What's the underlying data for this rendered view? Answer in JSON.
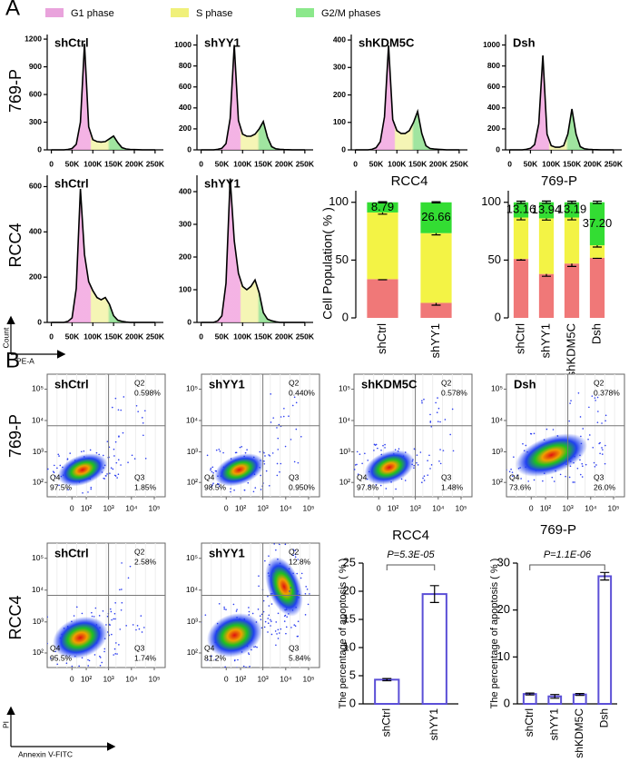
{
  "labels": {
    "panel_a": "A",
    "panel_b": "B",
    "row_a1": "769-P",
    "row_a2": "RCC4",
    "row_b1": "769-P",
    "row_b2": "RCC4",
    "count": "Count",
    "pe_a": "PE-A",
    "pi": "PI",
    "annexin": "Annexin V-FITC"
  },
  "legend": [
    {
      "name": "G1 phase",
      "color": "#e9a3dc"
    },
    {
      "name": "S phase",
      "color": "#f0f07a"
    },
    {
      "name": "G2/M phases",
      "color": "#8be88b"
    }
  ],
  "chart_data": [
    {
      "type": "line",
      "title": "shCtrl",
      "x": [
        0,
        10000,
        20000,
        30000,
        40000,
        50000,
        60000,
        70000,
        80000,
        90000,
        100000,
        110000,
        120000,
        130000,
        140000,
        150000,
        160000,
        170000,
        180000,
        190000,
        200000,
        210000,
        220000,
        230000,
        240000,
        250000
      ],
      "values": [
        0,
        0,
        0,
        0,
        5,
        15,
        60,
        300,
        1150,
        250,
        110,
        90,
        85,
        90,
        120,
        150,
        80,
        25,
        10,
        5,
        3,
        2,
        0,
        0,
        0,
        0
      ],
      "xlim": [
        -10000,
        270000
      ],
      "ylim": [
        0,
        1250
      ],
      "yticks": [
        0,
        300,
        600,
        900,
        1200
      ],
      "xticks": [
        0,
        {
          "value": 50000,
          "label": "50K"
        },
        {
          "value": 100000,
          "label": "100K"
        },
        {
          "value": 150000,
          "label": "150K"
        },
        {
          "value": 200000,
          "label": "200K"
        },
        {
          "value": 250000,
          "label": "250K"
        }
      ]
    },
    {
      "type": "line",
      "title": "shYY1",
      "x": [
        0,
        10000,
        20000,
        30000,
        40000,
        50000,
        60000,
        70000,
        80000,
        90000,
        100000,
        110000,
        120000,
        130000,
        140000,
        150000,
        160000,
        170000,
        180000,
        190000,
        200000,
        210000,
        220000,
        230000,
        240000,
        250000
      ],
      "values": [
        0,
        0,
        0,
        0,
        5,
        15,
        60,
        300,
        1000,
        280,
        150,
        130,
        130,
        150,
        200,
        270,
        120,
        30,
        10,
        5,
        3,
        2,
        0,
        0,
        0,
        0
      ],
      "xlim": [
        -10000,
        270000
      ],
      "ylim": [
        0,
        1100
      ],
      "yticks": [
        0,
        200,
        400,
        600,
        800,
        1000
      ],
      "xticks": [
        0,
        {
          "value": 50000,
          "label": "50K"
        },
        {
          "value": 100000,
          "label": "100K"
        },
        {
          "value": 150000,
          "label": "150K"
        },
        {
          "value": 200000,
          "label": "200K"
        },
        {
          "value": 250000,
          "label": "250K"
        }
      ]
    },
    {
      "type": "line",
      "title": "shKDM5C",
      "x": [
        0,
        10000,
        20000,
        30000,
        40000,
        50000,
        60000,
        70000,
        80000,
        90000,
        100000,
        110000,
        120000,
        130000,
        140000,
        150000,
        160000,
        170000,
        180000,
        190000,
        200000,
        210000,
        220000,
        230000,
        240000,
        250000
      ],
      "values": [
        0,
        0,
        0,
        0,
        2,
        8,
        30,
        120,
        380,
        110,
        70,
        60,
        60,
        70,
        100,
        140,
        60,
        15,
        5,
        3,
        2,
        1,
        0,
        0,
        0,
        0
      ],
      "xlim": [
        -10000,
        270000
      ],
      "ylim": [
        0,
        420
      ],
      "yticks": [
        0,
        100,
        200,
        300,
        400
      ],
      "xticks": [
        0,
        {
          "value": 50000,
          "label": "50K"
        },
        {
          "value": 100000,
          "label": "100K"
        },
        {
          "value": 150000,
          "label": "150K"
        },
        {
          "value": 200000,
          "label": "200K"
        },
        {
          "value": 250000,
          "label": "250K"
        }
      ]
    },
    {
      "type": "line",
      "title": "Dsh",
      "x": [
        0,
        10000,
        20000,
        30000,
        40000,
        50000,
        60000,
        70000,
        80000,
        90000,
        100000,
        110000,
        120000,
        130000,
        140000,
        150000,
        160000,
        170000,
        180000,
        190000,
        200000,
        210000,
        220000,
        230000,
        240000,
        250000
      ],
      "values": [
        0,
        0,
        0,
        0,
        5,
        15,
        50,
        250,
        900,
        150,
        40,
        25,
        25,
        40,
        150,
        390,
        150,
        30,
        10,
        5,
        3,
        2,
        0,
        0,
        0,
        0
      ],
      "xlim": [
        -10000,
        270000
      ],
      "ylim": [
        0,
        1100
      ],
      "yticks": [
        0,
        200,
        400,
        600,
        800,
        1000
      ],
      "xticks": [
        0,
        {
          "value": 50000,
          "label": "50K"
        },
        {
          "value": 100000,
          "label": "100K"
        },
        {
          "value": 150000,
          "label": "150K"
        },
        {
          "value": 200000,
          "label": "200K"
        },
        {
          "value": 250000,
          "label": "250K"
        }
      ]
    },
    {
      "type": "line",
      "title": "shCtrl",
      "x": [
        0,
        10000,
        20000,
        30000,
        40000,
        50000,
        60000,
        70000,
        80000,
        90000,
        100000,
        110000,
        120000,
        130000,
        140000,
        150000,
        160000,
        170000,
        180000,
        190000,
        200000,
        210000,
        220000,
        230000,
        240000,
        250000
      ],
      "values": [
        0,
        0,
        0,
        0,
        5,
        20,
        150,
        590,
        300,
        180,
        140,
        110,
        100,
        110,
        80,
        30,
        10,
        5,
        2,
        0,
        0,
        0,
        0,
        0,
        0,
        0
      ],
      "xlim": [
        -10000,
        270000
      ],
      "ylim": [
        0,
        650
      ],
      "yticks": [
        0,
        200,
        400,
        600
      ],
      "xticks": [
        0,
        {
          "value": 50000,
          "label": "50K"
        },
        {
          "value": 100000,
          "label": "100K"
        },
        {
          "value": 150000,
          "label": "150K"
        },
        {
          "value": 200000,
          "label": "200K"
        },
        {
          "value": 250000,
          "label": "250K"
        }
      ]
    },
    {
      "type": "line",
      "title": "shYY1",
      "x": [
        0,
        10000,
        20000,
        30000,
        40000,
        50000,
        60000,
        70000,
        80000,
        90000,
        100000,
        110000,
        120000,
        130000,
        140000,
        150000,
        160000,
        170000,
        180000,
        190000,
        200000,
        210000,
        220000,
        230000,
        240000,
        250000
      ],
      "values": [
        0,
        0,
        0,
        0,
        5,
        20,
        120,
        440,
        250,
        150,
        110,
        100,
        110,
        130,
        90,
        30,
        10,
        5,
        2,
        0,
        0,
        0,
        0,
        0,
        0,
        0
      ],
      "xlim": [
        -10000,
        270000
      ],
      "ylim": [
        0,
        450
      ],
      "yticks": [
        0,
        100,
        200,
        300,
        400
      ],
      "xticks": [
        0,
        {
          "value": 50000,
          "label": "50K"
        },
        {
          "value": 100000,
          "label": "100K"
        },
        {
          "value": 150000,
          "label": "150K"
        },
        {
          "value": 200000,
          "label": "200K"
        },
        {
          "value": 250000,
          "label": "250K"
        }
      ]
    },
    {
      "type": "stacked_bar",
      "title": "RCC4",
      "y_label": "Cell Population( % )",
      "categories": [
        "shCtrl",
        "shYY1"
      ],
      "series": [
        {
          "color": "#f07878",
          "values": [
            33.5,
            13
          ],
          "errors": [
            0.5,
            2
          ]
        },
        {
          "color": "#f3f345",
          "values": [
            57.7,
            60.3
          ],
          "errors": [
            1.5,
            1.5
          ]
        },
        {
          "color": "#33dd33",
          "values": [
            8.79,
            26.66
          ],
          "errors": [
            0.5,
            0.5
          ],
          "value_labels": [
            "8.79",
            "26.66"
          ]
        }
      ],
      "ylim": [
        0,
        110
      ],
      "yticks": [
        0,
        50,
        100
      ]
    },
    {
      "type": "stacked_bar",
      "title": "769-P",
      "categories": [
        "shCtrl",
        "shYY1",
        "shKDM5C",
        "Dsh"
      ],
      "series": [
        {
          "color": "#f07878",
          "values": [
            51,
            38,
            47,
            52
          ],
          "errors": [
            1,
            2,
            2.5,
            0.5
          ]
        },
        {
          "color": "#f3f345",
          "values": [
            35.8,
            48.1,
            39.8,
            10.8
          ],
          "errors": [
            2,
            1.5,
            2,
            1.5
          ]
        },
        {
          "color": "#33dd33",
          "values": [
            13.16,
            13.94,
            13.19,
            37.2
          ],
          "errors": [
            1,
            1,
            1,
            1
          ],
          "value_labels": [
            "13.16",
            "13.94",
            "13.19",
            "37.20"
          ]
        }
      ],
      "ylim": [
        0,
        110
      ],
      "yticks": [
        0,
        50,
        100
      ]
    },
    {
      "type": "flow",
      "title": "shCtrl",
      "scale": "biexponential",
      "quadrants": [
        "Q2",
        "Q3",
        "Q4"
      ],
      "quadrant_values": [
        "0.598%",
        "1.85%",
        "97.5%"
      ],
      "xlim": [
        -300,
        300000
      ],
      "ylim": [
        20,
        300000
      ],
      "xticks": [
        0,
        {
          "value": 100,
          "label": "10²"
        },
        {
          "value": 1000,
          "label": "10³"
        },
        {
          "value": 10000,
          "label": "10⁴"
        },
        {
          "value": 100000,
          "label": "10⁵"
        }
      ],
      "yticks": [
        {
          "value": 100,
          "label": "10²"
        },
        {
          "value": 1000,
          "label": "10³"
        },
        {
          "value": 10000,
          "label": "10⁴"
        },
        {
          "value": 100000,
          "label": "10⁵"
        }
      ]
    },
    {
      "type": "flow",
      "title": "shYY1",
      "scale": "biexponential",
      "quadrants": [
        "Q2",
        "Q3",
        "Q4"
      ],
      "quadrant_values": [
        "0.440%",
        "0.950%",
        "98.5%"
      ],
      "xlim": [
        -300,
        300000
      ],
      "ylim": [
        20,
        300000
      ],
      "xticks": [
        0,
        {
          "value": 100,
          "label": "10²"
        },
        {
          "value": 1000,
          "label": "10³"
        },
        {
          "value": 10000,
          "label": "10⁴"
        },
        {
          "value": 100000,
          "label": "10⁵"
        }
      ],
      "yticks": [
        {
          "value": 100,
          "label": "10²"
        },
        {
          "value": 1000,
          "label": "10³"
        },
        {
          "value": 10000,
          "label": "10⁴"
        },
        {
          "value": 100000,
          "label": "10⁵"
        }
      ]
    },
    {
      "type": "flow",
      "title": "shKDM5C",
      "scale": "biexponential",
      "quadrants": [
        "Q2",
        "Q3",
        "Q4"
      ],
      "quadrant_values": [
        "0.578%",
        "1.48%",
        "97.8%"
      ],
      "xlim": [
        -300,
        300000
      ],
      "ylim": [
        20,
        300000
      ],
      "xticks": [
        0,
        {
          "value": 100,
          "label": "10²"
        },
        {
          "value": 1000,
          "label": "10³"
        },
        {
          "value": 10000,
          "label": "10⁴"
        },
        {
          "value": 100000,
          "label": "10⁵"
        }
      ],
      "yticks": [
        {
          "value": 100,
          "label": "10²"
        },
        {
          "value": 1000,
          "label": "10³"
        },
        {
          "value": 10000,
          "label": "10⁴"
        },
        {
          "value": 100000,
          "label": "10⁵"
        }
      ]
    },
    {
      "type": "flow",
      "title": "Dsh",
      "scale": "biexponential",
      "quadrants": [
        "Q2",
        "Q3",
        "Q4"
      ],
      "quadrant_values": [
        "0.378%",
        "26.0%",
        "73.6%"
      ],
      "xlim": [
        -300,
        300000
      ],
      "ylim": [
        20,
        300000
      ],
      "xticks": [
        0,
        {
          "value": 100,
          "label": "10²"
        },
        {
          "value": 1000,
          "label": "10³"
        },
        {
          "value": 10000,
          "label": "10⁴"
        },
        {
          "value": 100000,
          "label": "10⁵"
        }
      ],
      "yticks": [
        {
          "value": 100,
          "label": "10²"
        },
        {
          "value": 1000,
          "label": "10³"
        },
        {
          "value": 10000,
          "label": "10⁴"
        },
        {
          "value": 100000,
          "label": "10⁵"
        }
      ]
    },
    {
      "type": "flow",
      "title": "shCtrl",
      "scale": "biexponential",
      "quadrants": [
        "Q2",
        "Q3",
        "Q4"
      ],
      "quadrant_values": [
        "2.58%",
        "1.74%",
        "95.5%"
      ],
      "xlim": [
        -300,
        300000
      ],
      "ylim": [
        20,
        300000
      ],
      "xticks": [
        0,
        {
          "value": 100,
          "label": "10²"
        },
        {
          "value": 1000,
          "label": "10³"
        },
        {
          "value": 10000,
          "label": "10⁴"
        },
        {
          "value": 100000,
          "label": "10⁵"
        }
      ],
      "yticks": [
        {
          "value": 100,
          "label": "10²"
        },
        {
          "value": 1000,
          "label": "10³"
        },
        {
          "value": 10000,
          "label": "10⁴"
        },
        {
          "value": 100000,
          "label": "10⁵"
        }
      ]
    },
    {
      "type": "flow",
      "title": "shYY1",
      "scale": "biexponential",
      "quadrants": [
        "Q2",
        "Q3",
        "Q4"
      ],
      "quadrant_values": [
        "12.8%",
        "5.84%",
        "81.2%"
      ],
      "xlim": [
        -300,
        300000
      ],
      "ylim": [
        20,
        300000
      ],
      "xticks": [
        0,
        {
          "value": 100,
          "label": "10²"
        },
        {
          "value": 1000,
          "label": "10³"
        },
        {
          "value": 10000,
          "label": "10⁴"
        },
        {
          "value": 100000,
          "label": "10⁵"
        }
      ],
      "yticks": [
        {
          "value": 100,
          "label": "10²"
        },
        {
          "value": 1000,
          "label": "10³"
        },
        {
          "value": 10000,
          "label": "10⁴"
        },
        {
          "value": 100000,
          "label": "10⁵"
        }
      ]
    },
    {
      "type": "bar",
      "title": "RCC4",
      "y_label": "The percentage of apoptosis ( % )",
      "annotation": "P=5.3E-05",
      "color": "#5b4fd6",
      "categories": [
        "shCtrl",
        "shYY1"
      ],
      "values": [
        4.3,
        19.5
      ],
      "errors": [
        0.2,
        1.5
      ],
      "ylim": [
        0,
        25
      ],
      "yticks": [
        0,
        5,
        10,
        15,
        20,
        25
      ]
    },
    {
      "type": "bar",
      "title": "769-P",
      "y_label": "The percentage of apoptosis ( % )",
      "annotation": "P=1.1E-06",
      "color": "#5b4fd6",
      "categories": [
        "shCtrl",
        "shYY1",
        "shKDM5C",
        "Dsh"
      ],
      "values": [
        2.1,
        1.6,
        2.0,
        27.2
      ],
      "errors": [
        0.2,
        0.4,
        0.2,
        0.8
      ],
      "ylim": [
        0,
        30
      ],
      "yticks": [
        0,
        10,
        20,
        30
      ]
    }
  ]
}
